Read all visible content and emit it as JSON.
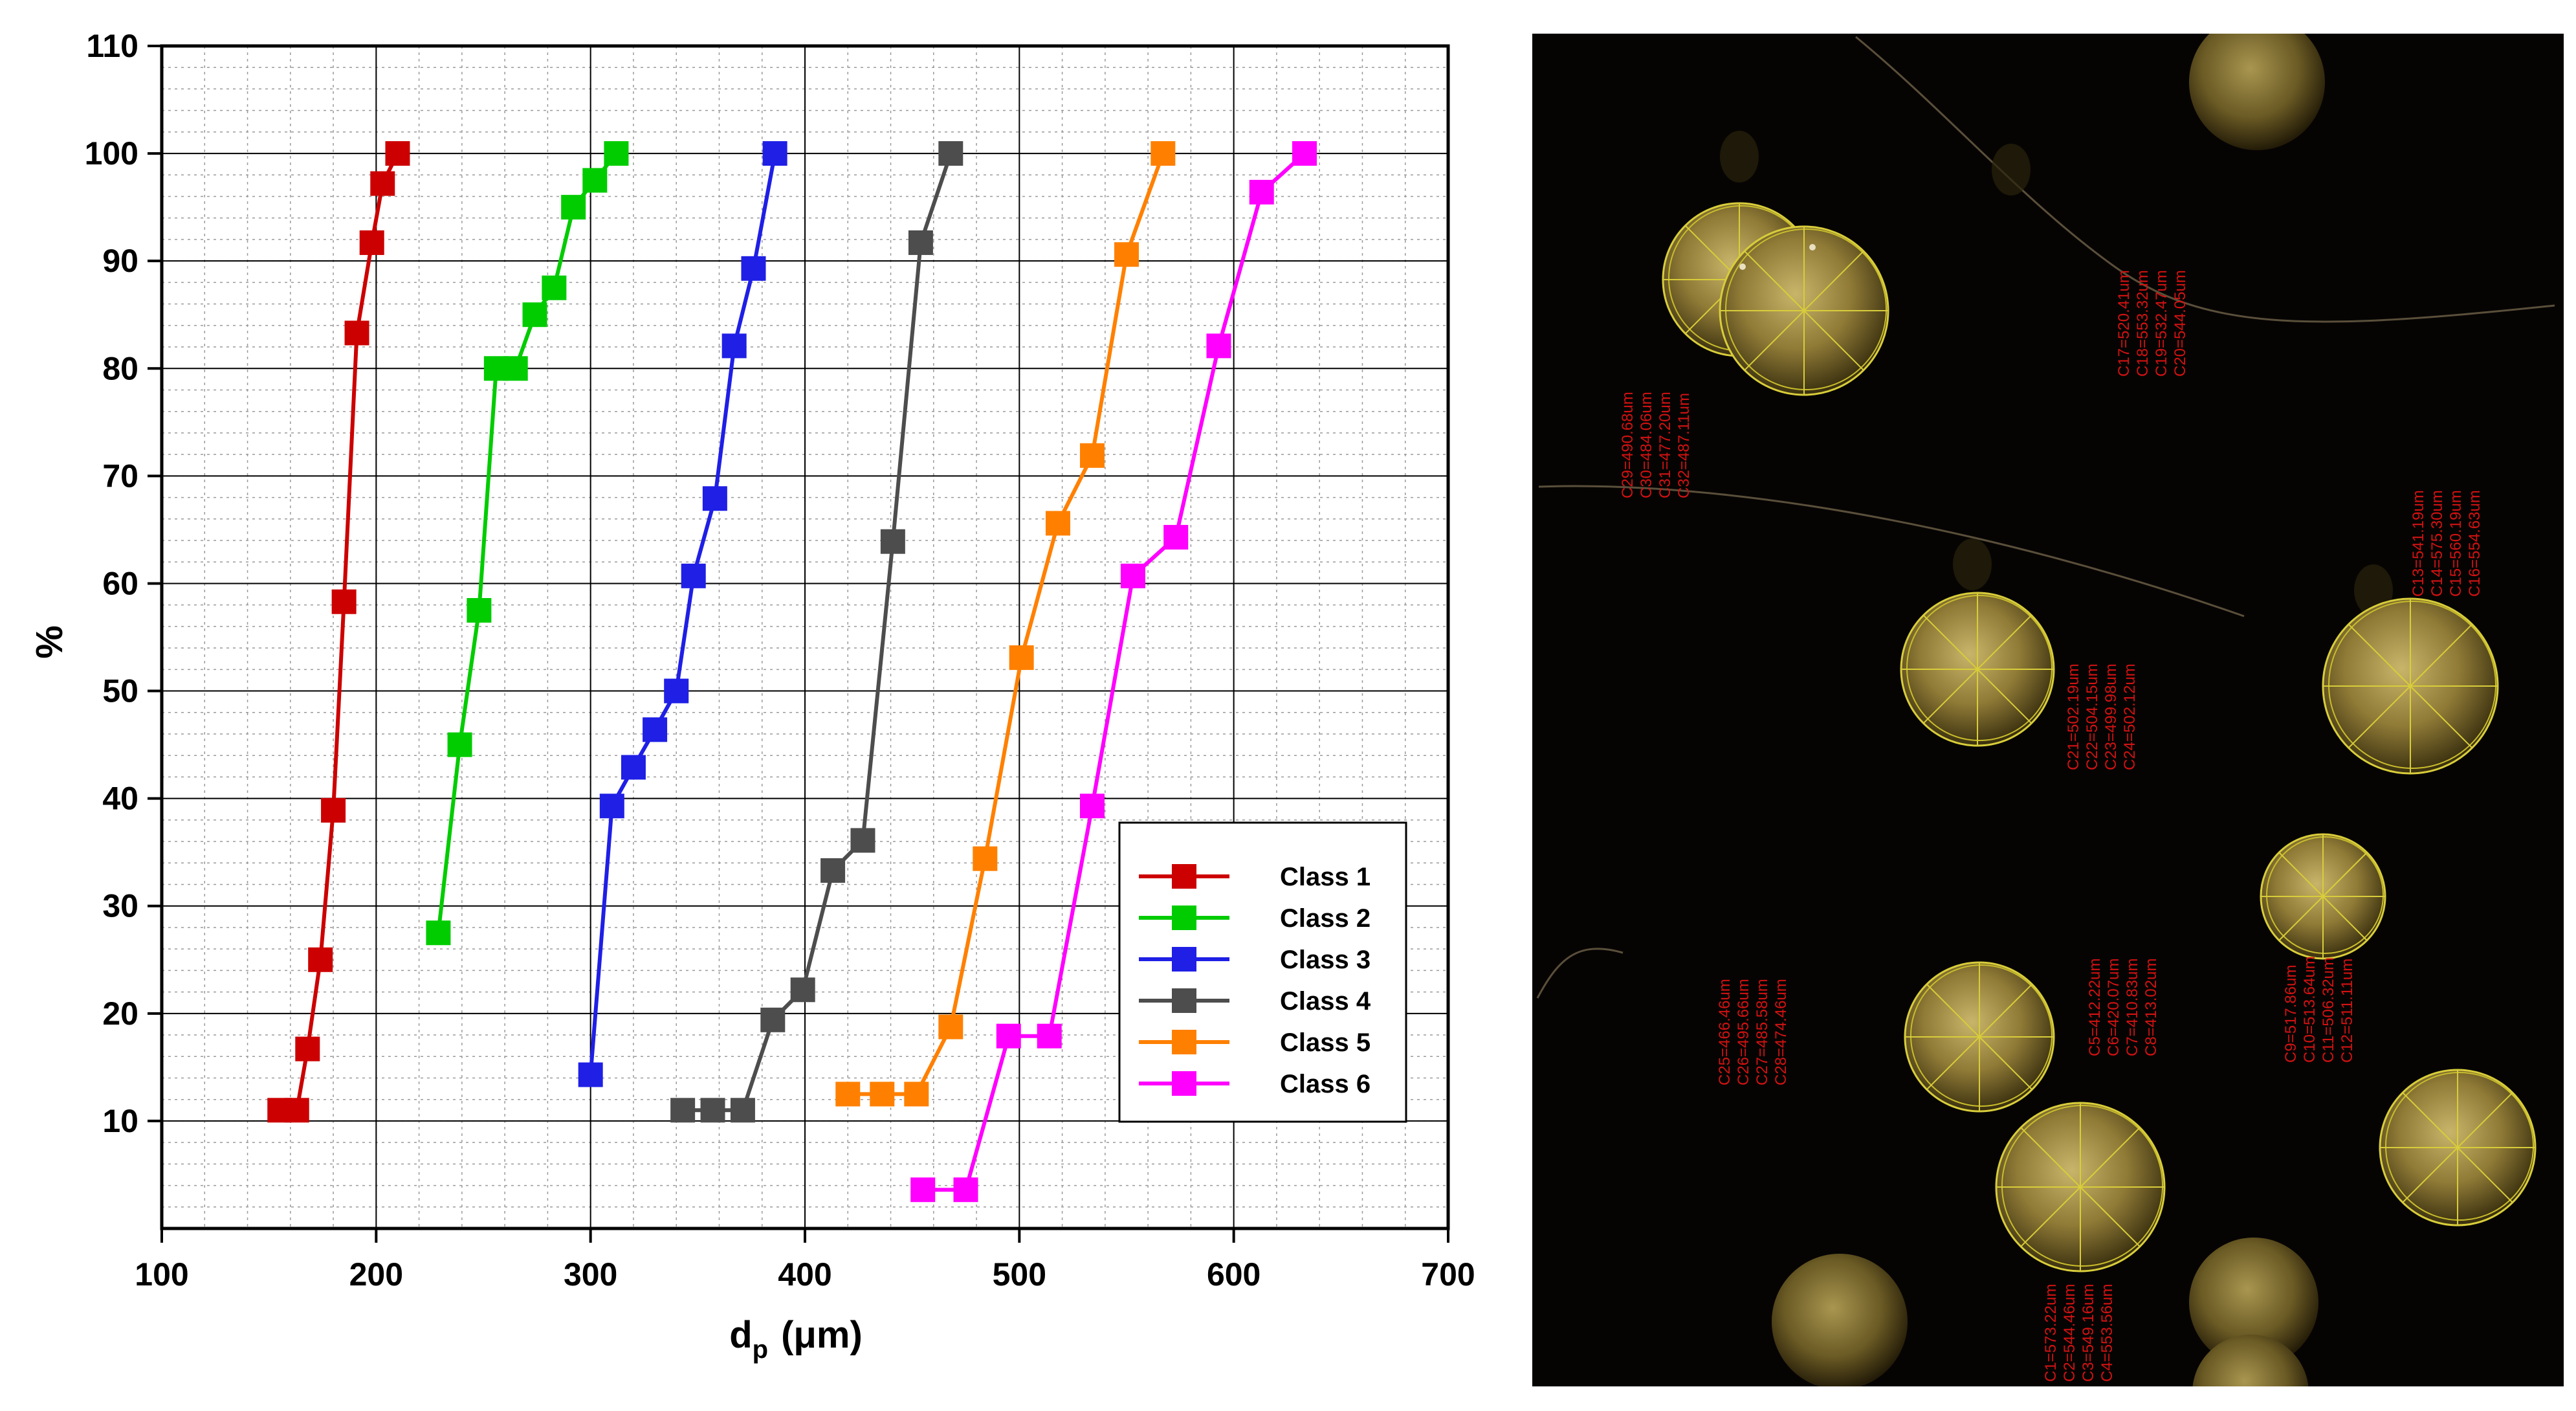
{
  "chart_data": {
    "type": "line",
    "title": "",
    "xlabel_main": "d",
    "xlabel_sub": "p",
    "xlabel_unit": "(μm)",
    "ylabel": "%",
    "xlim": [
      100,
      700
    ],
    "ylim": [
      0,
      110
    ],
    "x_ticks": [
      100,
      200,
      300,
      400,
      500,
      600,
      700
    ],
    "y_ticks": [
      10,
      20,
      30,
      40,
      50,
      60,
      70,
      80,
      90,
      100,
      110
    ],
    "grid": true,
    "legend_position": "lower-right",
    "series": [
      {
        "name": "Class 1",
        "color": "#cc0000",
        "x": [
          155,
          163,
          168,
          174,
          180,
          185,
          191,
          198,
          203,
          210
        ],
        "y": [
          11,
          11,
          16.7,
          25,
          38.9,
          58.3,
          83.3,
          91.7,
          97.2,
          100
        ]
      },
      {
        "name": "Class 2",
        "color": "#00cc00",
        "x": [
          229,
          239,
          248,
          256,
          265,
          274,
          283,
          292,
          302,
          312
        ],
        "y": [
          27.5,
          45,
          57.5,
          80,
          80,
          85,
          87.5,
          95,
          97.5,
          100
        ]
      },
      {
        "name": "Class 3",
        "color": "#1f1fe6",
        "x": [
          300,
          310,
          320,
          330,
          340,
          348,
          358,
          367,
          376,
          386
        ],
        "y": [
          14.3,
          39.3,
          42.9,
          46.4,
          50,
          60.7,
          67.9,
          82.1,
          89.3,
          100
        ]
      },
      {
        "name": "Class 4",
        "color": "#4d4d4d",
        "x": [
          343,
          357,
          371,
          385,
          399,
          413,
          427,
          441,
          454,
          468
        ],
        "y": [
          11,
          11,
          11,
          19.4,
          22.2,
          33.3,
          36.1,
          63.9,
          91.7,
          100
        ]
      },
      {
        "name": "Class 5",
        "color": "#ff8000",
        "x": [
          420,
          436,
          452,
          468,
          484,
          501,
          518,
          534,
          550,
          567
        ],
        "y": [
          12.5,
          12.5,
          12.5,
          18.75,
          34.4,
          53.1,
          65.6,
          71.9,
          90.6,
          100
        ]
      },
      {
        "name": "Class 6",
        "color": "#ff00ff",
        "x": [
          455,
          475,
          495,
          514,
          534,
          553,
          573,
          593,
          613,
          633
        ],
        "y": [
          3.6,
          3.6,
          17.9,
          17.9,
          39.3,
          60.7,
          64.3,
          82.1,
          96.4,
          100
        ]
      }
    ]
  },
  "photo": {
    "labels": {
      "c29_32": "C29=490.68um\nC30=484.06um\nC31=477.20um\nC32=487.11um",
      "c17_20": "C17=520.41um\nC18=553.32um\nC19=532.47um\nC20=544.05um",
      "c13_16": "C13=541.19um\nC14=575.30um\nC15=560.19um\nC16=554.63um",
      "c21_24": "C21=502.19um\nC22=504.15um\nC23=499.98um\nC24=502.12um",
      "c25_28": "C25=466.46um\nC26=495.66um\nC27=485.58um\nC28=474.46um",
      "c5_8": "C5=412.22um\nC6=420.07um\nC7=410.83um\nC8=413.02um",
      "c9_12": "C9=517.86um\nC10=513.64um\nC11=506.32um\nC12=511.11um",
      "c1_4": "C1=573.22um\nC2=544.46um\nC3=549.16um\nC4=553.56um"
    }
  }
}
